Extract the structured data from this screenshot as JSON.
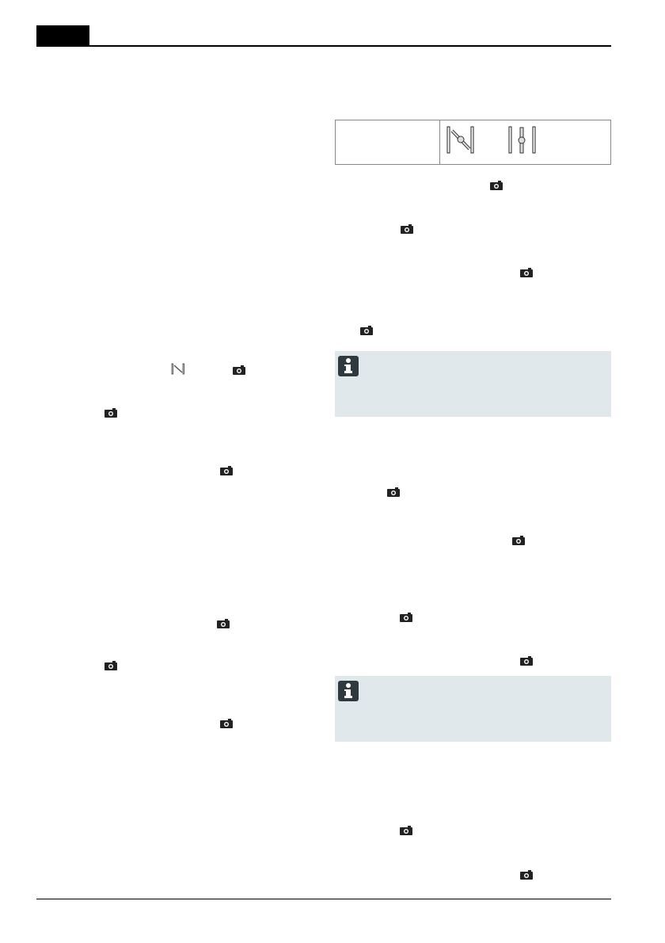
{
  "header": {
    "tab_color": "#000000"
  },
  "table": {
    "icons": [
      "valve-open-icon",
      "valve-closed-icon"
    ]
  },
  "icons": {
    "camera": "camera-icon",
    "info": "info-icon",
    "valve_small": "valve-open-icon"
  },
  "colors": {
    "info_box_bg": "#e1e8eb",
    "info_icon_bg": "#2f3a3f"
  }
}
